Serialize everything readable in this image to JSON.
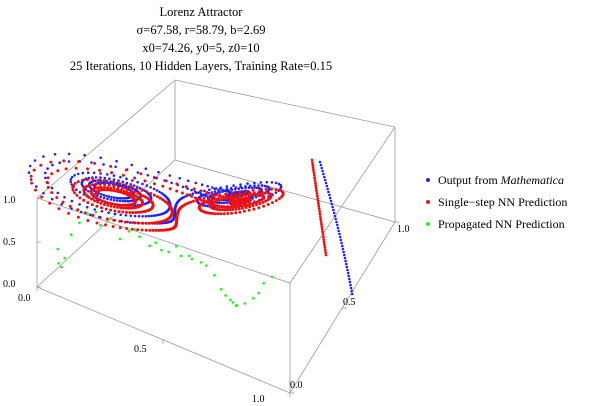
{
  "chart_data": {
    "type": "scatter",
    "title_lines": [
      "Lorenz Attractor",
      "σ=67.58, r=58.79, b=2.69",
      "x0=74.26, y0=5, z0=10",
      "25 Iterations, 10 Hidden Layers, Training Rate=0.15"
    ],
    "sigma": 67.58,
    "r": 58.79,
    "b": 2.69,
    "x0": 74.26,
    "y0": 5,
    "z0": 10,
    "iterations": 25,
    "hidden_layers": 10,
    "training_rate": 0.15,
    "axes": {
      "x": {
        "range": [
          0,
          1
        ],
        "ticks": [
          "0.0",
          "0.5",
          "1.0"
        ]
      },
      "y": {
        "range": [
          0,
          1
        ],
        "ticks": [
          "0.0",
          "0.5",
          "1.0"
        ]
      },
      "z": {
        "range": [
          0,
          1
        ],
        "ticks": [
          "0.0",
          "0.5",
          "1.0"
        ]
      }
    },
    "legend_position": "right",
    "series": [
      {
        "name": "Output from ",
        "name_italic": "Mathematica",
        "color": "#2222ee"
      },
      {
        "name": "Single−step NN Prediction",
        "color": "#ee1111"
      },
      {
        "name": "Propagated NN Prediction",
        "color": "#33ee33"
      }
    ]
  }
}
